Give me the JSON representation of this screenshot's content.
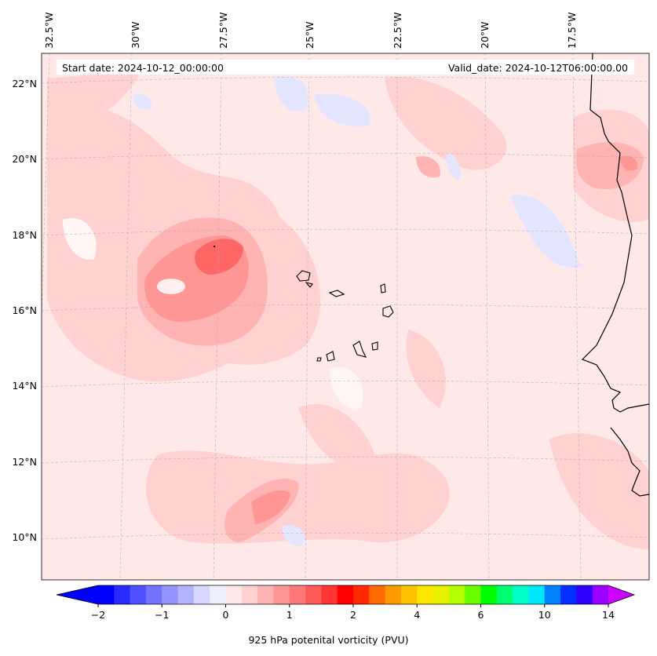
{
  "header": {
    "start_date": "Start date: 2024-10-12_00:00:00",
    "valid_date": "Valid_date: 2024-10-12T06:00:00.00"
  },
  "axes": {
    "lon_labels": [
      "32.5°W",
      "30°W",
      "27.5°W",
      "25°W",
      "22.5°W",
      "20°W",
      "17.5°W"
    ],
    "lat_labels": [
      "22°N",
      "20°N",
      "18°N",
      "16°N",
      "14°N",
      "12°N",
      "10°N"
    ]
  },
  "colorbar": {
    "label": "925 hPa potenital vorticity (PVU)",
    "tick_labels": [
      "−2",
      "−1",
      "0",
      "1",
      "2",
      "4",
      "6",
      "10",
      "14"
    ],
    "colors": [
      "#0000ff",
      "#2a2aff",
      "#5050ff",
      "#7373ff",
      "#9494ff",
      "#b3b3ff",
      "#d6d6ff",
      "#eef0ff",
      "#ffe8e8",
      "#ffd1d1",
      "#ffb3b3",
      "#ff9696",
      "#ff7878",
      "#ff5a5a",
      "#ff3535",
      "#ff0000",
      "#ff2a00",
      "#ff6a00",
      "#ff9a00",
      "#ffc000",
      "#ffe600",
      "#e6f000",
      "#b4ff00",
      "#6aff00",
      "#00ff00",
      "#00ff70",
      "#00ffc8",
      "#00e6ff",
      "#0080ff",
      "#0030ff",
      "#3000ff",
      "#9900ff"
    ],
    "extend_min_color": "#0000ff",
    "extend_max_color": "#cc00ff"
  },
  "map": {
    "background_color": "#ffe8e8"
  }
}
